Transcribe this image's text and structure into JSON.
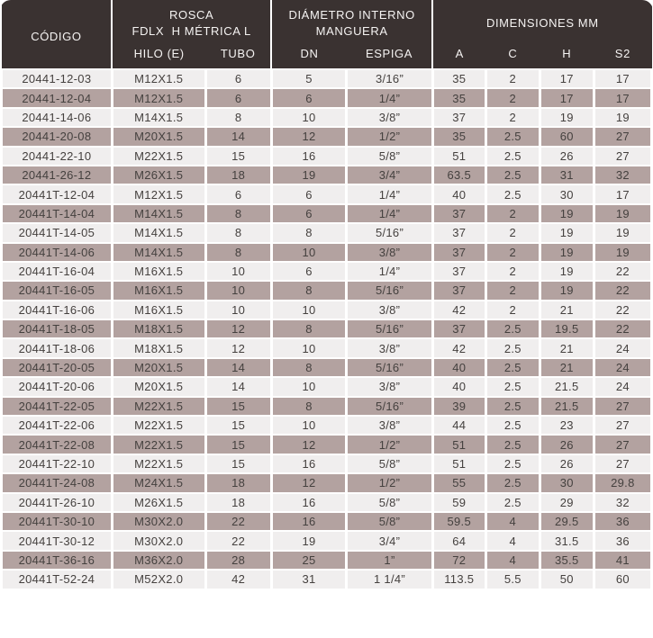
{
  "colors": {
    "header_bg": "#3a3231",
    "header_text": "#f5f3f2",
    "row_light": "#f0eeee",
    "row_dark": "#b3a2a0",
    "grid": "#ffffff",
    "cell_text": "#45413f"
  },
  "table": {
    "header": {
      "codigo": "CÓDIGO",
      "groups": [
        {
          "line1": "ROSCA",
          "line2": "FDLX  H MÉTRICA L"
        },
        {
          "line1": "DIÁMETRO INTERNO",
          "line2": "MANGUERA"
        },
        {
          "line1": "DIMENSIONES MM",
          "line2": ""
        }
      ],
      "sub": [
        "HILO (E)",
        "TUBO",
        "DN",
        "ESPIGA",
        "A",
        "C",
        "H",
        "S2"
      ]
    },
    "rows": [
      [
        "20441-12-03",
        "M12X1.5",
        "6",
        "5",
        "3/16”",
        "35",
        "2",
        "17",
        "17"
      ],
      [
        "20441-12-04",
        "M12X1.5",
        "6",
        "6",
        "1/4”",
        "35",
        "2",
        "17",
        "17"
      ],
      [
        "20441-14-06",
        "M14X1.5",
        "8",
        "10",
        "3/8”",
        "37",
        "2",
        "19",
        "19"
      ],
      [
        "20441-20-08",
        "M20X1.5",
        "14",
        "12",
        "1/2”",
        "35",
        "2.5",
        "60",
        "27"
      ],
      [
        "20441-22-10",
        "M22X1.5",
        "15",
        "16",
        "5/8”",
        "51",
        "2.5",
        "26",
        "27"
      ],
      [
        "20441-26-12",
        "M26X1.5",
        "18",
        "19",
        "3/4”",
        "63.5",
        "2.5",
        "31",
        "32"
      ],
      [
        "20441T-12-04",
        "M12X1.5",
        "6",
        "6",
        "1/4”",
        "40",
        "2.5",
        "30",
        "17"
      ],
      [
        "20441T-14-04",
        "M14X1.5",
        "8",
        "6",
        "1/4”",
        "37",
        "2",
        "19",
        "19"
      ],
      [
        "20441T-14-05",
        "M14X1.5",
        "8",
        "8",
        "5/16”",
        "37",
        "2",
        "19",
        "19"
      ],
      [
        "20441T-14-06",
        "M14X1.5",
        "8",
        "10",
        "3/8”",
        "37",
        "2",
        "19",
        "19"
      ],
      [
        "20441T-16-04",
        "M16X1.5",
        "10",
        "6",
        "1/4”",
        "37",
        "2",
        "19",
        "22"
      ],
      [
        "20441T-16-05",
        "M16X1.5",
        "10",
        "8",
        "5/16”",
        "37",
        "2",
        "19",
        "22"
      ],
      [
        "20441T-16-06",
        "M16X1.5",
        "10",
        "10",
        "3/8”",
        "42",
        "2",
        "21",
        "22"
      ],
      [
        "20441T-18-05",
        "M18X1.5",
        "12",
        "8",
        "5/16”",
        "37",
        "2.5",
        "19.5",
        "22"
      ],
      [
        "20441T-18-06",
        "M18X1.5",
        "12",
        "10",
        "3/8”",
        "42",
        "2.5",
        "21",
        "24"
      ],
      [
        "20441T-20-05",
        "M20X1.5",
        "14",
        "8",
        "5/16”",
        "40",
        "2.5",
        "21",
        "24"
      ],
      [
        "20441T-20-06",
        "M20X1.5",
        "14",
        "10",
        "3/8”",
        "40",
        "2.5",
        "21.5",
        "24"
      ],
      [
        "20441T-22-05",
        "M22X1.5",
        "15",
        "8",
        "5/16”",
        "39",
        "2.5",
        "21.5",
        "27"
      ],
      [
        "20441T-22-06",
        "M22X1.5",
        "15",
        "10",
        "3/8”",
        "44",
        "2.5",
        "23",
        "27"
      ],
      [
        "20441T-22-08",
        "M22X1.5",
        "15",
        "12",
        "1/2”",
        "51",
        "2.5",
        "26",
        "27"
      ],
      [
        "20441T-22-10",
        "M22X1.5",
        "15",
        "16",
        "5/8”",
        "51",
        "2.5",
        "26",
        "27"
      ],
      [
        "20441T-24-08",
        "M24X1.5",
        "18",
        "12",
        "1/2”",
        "55",
        "2.5",
        "30",
        "29.8"
      ],
      [
        "20441T-26-10",
        "M26X1.5",
        "18",
        "16",
        "5/8”",
        "59",
        "2.5",
        "29",
        "32"
      ],
      [
        "20441T-30-10",
        "M30X2.0",
        "22",
        "16",
        "5/8”",
        "59.5",
        "4",
        "29.5",
        "36"
      ],
      [
        "20441T-30-12",
        "M30X2.0",
        "22",
        "19",
        "3/4”",
        "64",
        "4",
        "31.5",
        "36"
      ],
      [
        "20441T-36-16",
        "M36X2.0",
        "28",
        "25",
        "1”",
        "72",
        "4",
        "35.5",
        "41"
      ],
      [
        "20441T-52-24",
        "M52X2.0",
        "42",
        "31",
        "1 1/4”",
        "113.5",
        "5.5",
        "50",
        "60"
      ]
    ]
  }
}
